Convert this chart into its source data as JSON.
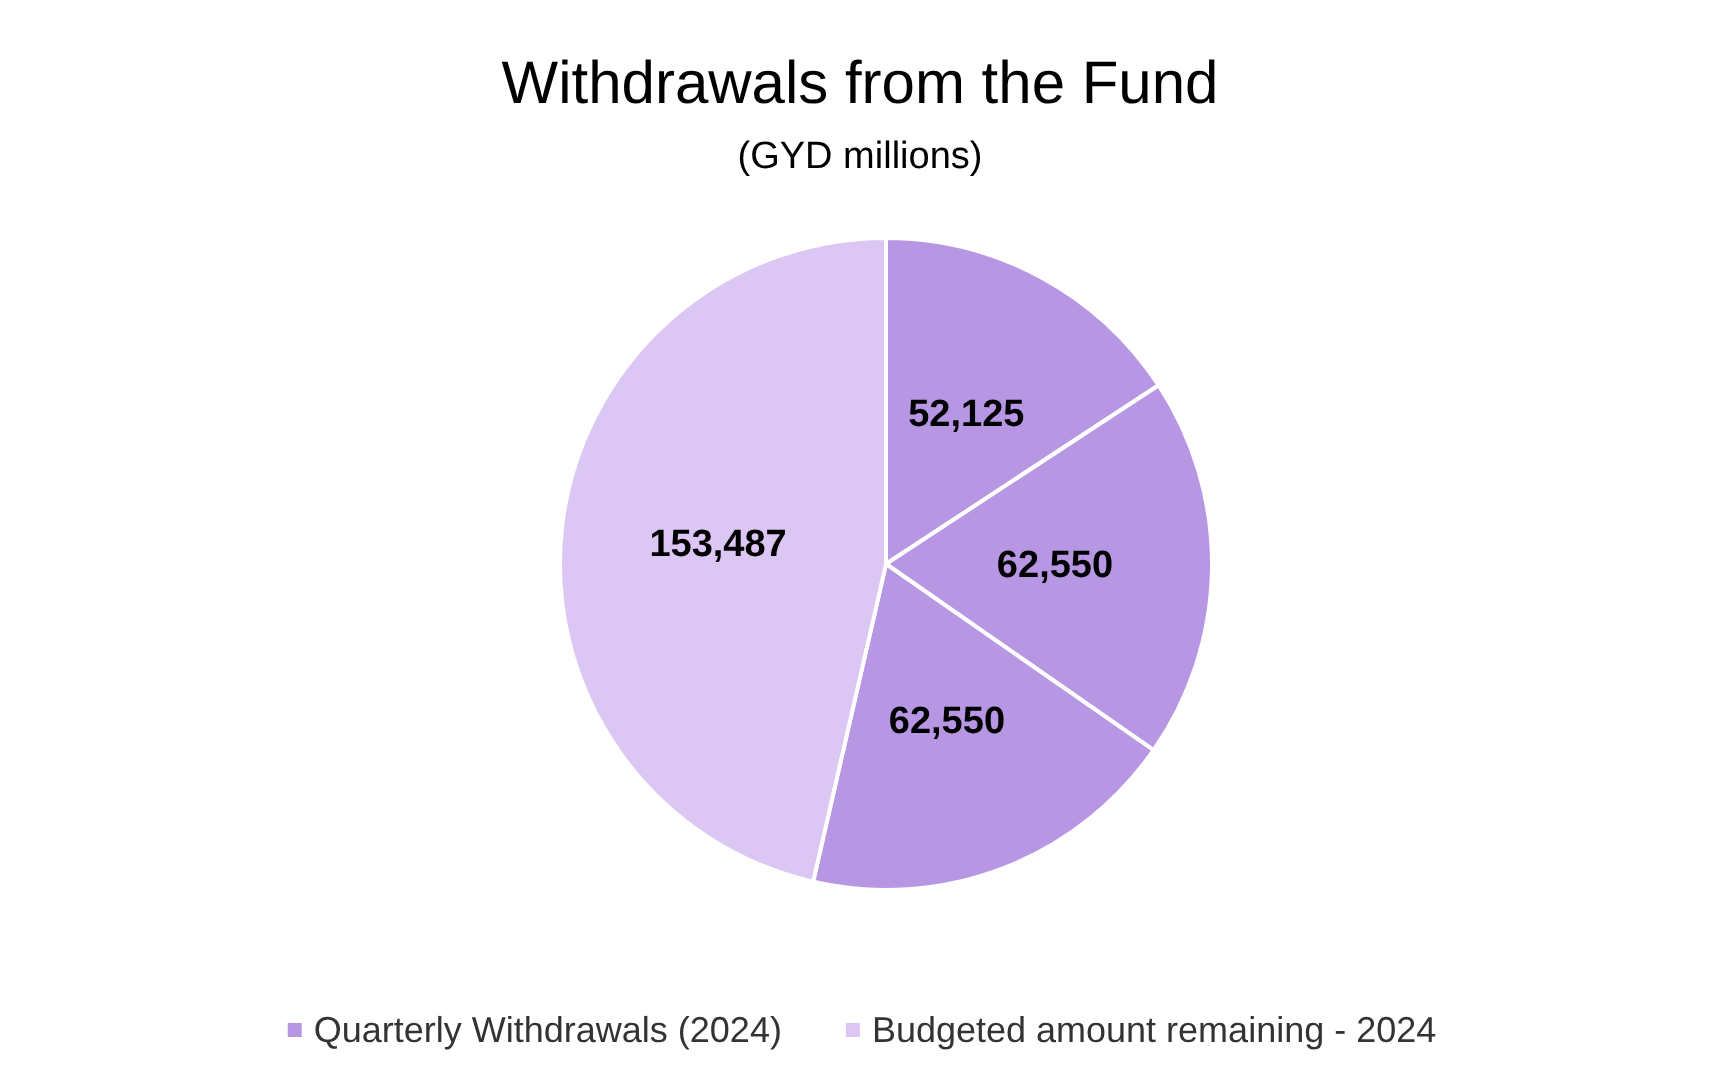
{
  "chart_data": {
    "type": "pie",
    "title": "Withdrawals from the Fund",
    "subtitle": "(GYD millions)",
    "categories": [
      "Quarterly Withdrawals (2024)",
      null,
      null,
      "Budgeted amount remaining - 2024"
    ],
    "values": [
      52125,
      62550,
      62550,
      153487
    ],
    "value_labels": [
      "52,125",
      "62,550",
      "62,550",
      "153,487"
    ],
    "colors": [
      "#b796e4",
      "#b796e4",
      "#b796e4",
      "#dcc6f4"
    ],
    "legend": "bottom"
  }
}
